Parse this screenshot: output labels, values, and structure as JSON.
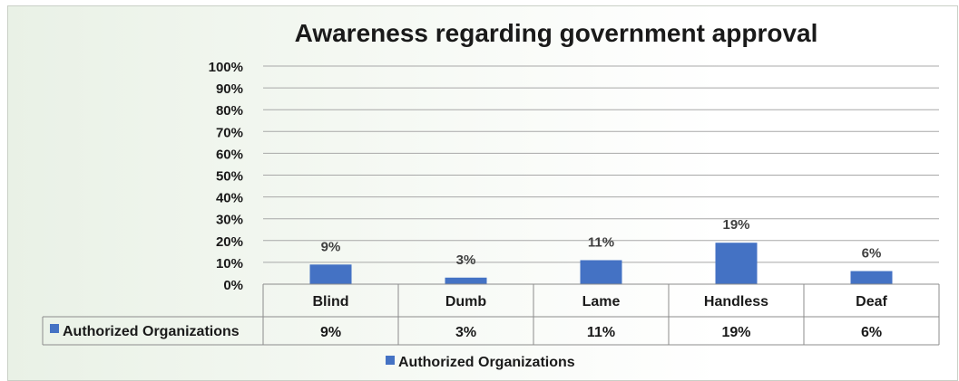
{
  "chart_data": {
    "type": "bar",
    "title": "Awareness regarding government approval",
    "categories": [
      "Blind",
      "Dumb",
      "Lame",
      "Handless",
      "Deaf"
    ],
    "series": [
      {
        "name": "Authorized Organizations",
        "values": [
          9,
          3,
          11,
          19,
          6
        ],
        "color": "#4472c4"
      }
    ],
    "value_unit": "%",
    "ylim": [
      0,
      100
    ],
    "y_ticks": [
      0,
      10,
      20,
      30,
      40,
      50,
      60,
      70,
      80,
      90,
      100
    ],
    "y_tick_labels": [
      "0%",
      "10%",
      "20%",
      "30%",
      "40%",
      "50%",
      "60%",
      "70%",
      "80%",
      "90%",
      "100%"
    ],
    "data_labels": [
      "9%",
      "3%",
      "11%",
      "19%",
      "6%"
    ],
    "data_table": {
      "row_label": "Authorized Organizations",
      "cells": [
        "9%",
        "3%",
        "11%",
        "19%",
        "6%"
      ]
    },
    "legend": {
      "position": "bottom",
      "label": "Authorized Organizations"
    },
    "grid": true
  }
}
